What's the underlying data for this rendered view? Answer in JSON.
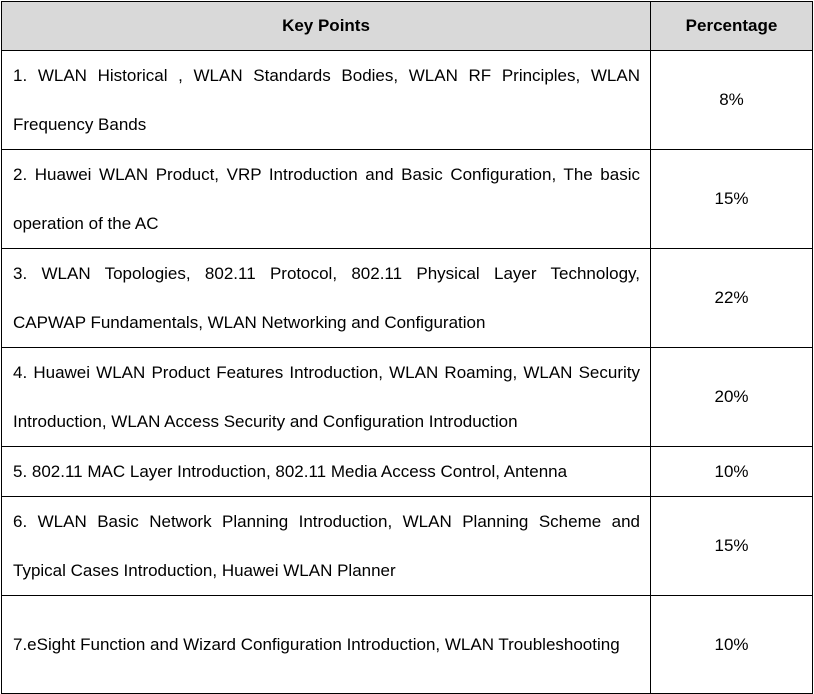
{
  "table": {
    "headers": [
      "Key Points",
      "Percentage"
    ],
    "rows": [
      {
        "key_points": "1. WLAN Historical , WLAN Standards Bodies, WLAN RF Principles, WLAN Frequency Bands",
        "percentage": "8%"
      },
      {
        "key_points": "2. Huawei WLAN Product, VRP Introduction and Basic Configuration, The basic operation of the AC",
        "percentage": "15%"
      },
      {
        "key_points": "3. WLAN Topologies, 802.11 Protocol, 802.11 Physical Layer Technology, CAPWAP Fundamentals, WLAN Networking and Configuration",
        "percentage": "22%"
      },
      {
        "key_points": "4. Huawei WLAN Product Features Introduction, WLAN Roaming, WLAN Security Introduction, WLAN Access Security and Configuration Introduction",
        "percentage": "20%"
      },
      {
        "key_points": "5. 802.11 MAC Layer Introduction, 802.11 Media Access Control, Antenna",
        "percentage": "10%"
      },
      {
        "key_points": "6. WLAN Basic Network Planning Introduction, WLAN Planning Scheme and Typical Cases Introduction, Huawei WLAN Planner",
        "percentage": "15%"
      },
      {
        "key_points": "7.eSight Function and Wizard Configuration Introduction, WLAN Troubleshooting",
        "percentage": "10%"
      }
    ]
  }
}
